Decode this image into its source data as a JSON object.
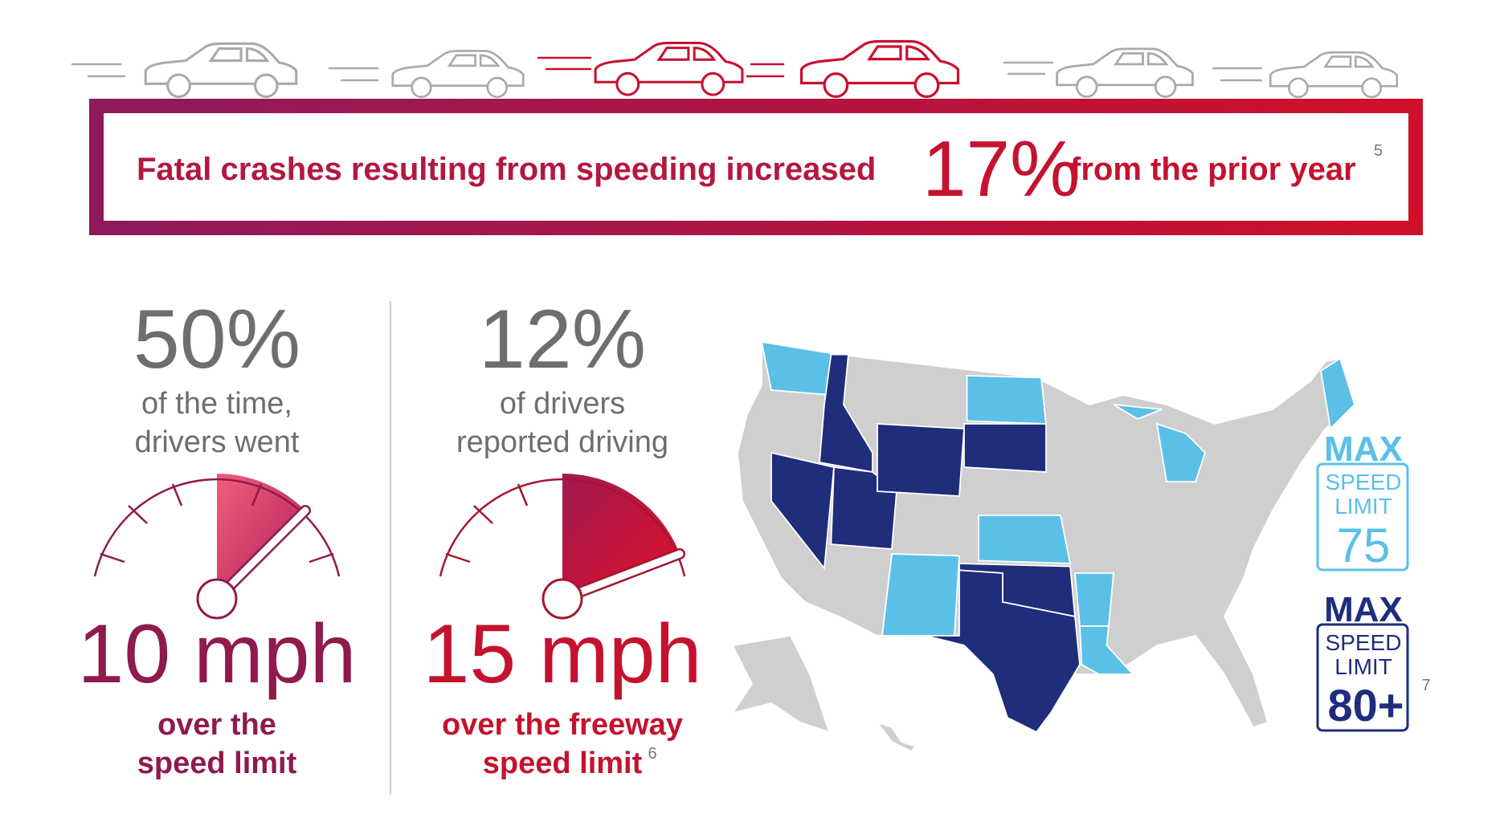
{
  "banner": {
    "text_before": "Fatal crashes resulting from speeding increased",
    "stat": "17%",
    "text_after": "from the prior year",
    "footnote": "5"
  },
  "stats": [
    {
      "value": "50%",
      "line1": "of the time,",
      "line2": "drivers went",
      "speed": "10 mph",
      "caption1": "over the",
      "caption2": "speed limit"
    },
    {
      "value": "12%",
      "line1": "of drivers",
      "line2": "reported driving",
      "speed": "15 mph",
      "caption1": "over the freeway",
      "caption2": "speed limit",
      "footnote": "6"
    }
  ],
  "legend": [
    {
      "title": "MAX",
      "line1": "SPEED",
      "line2": "LIMIT",
      "value": "75"
    },
    {
      "title": "MAX",
      "line1": "SPEED",
      "line2": "LIMIT",
      "value": "80+",
      "footnote": "7"
    }
  ]
}
